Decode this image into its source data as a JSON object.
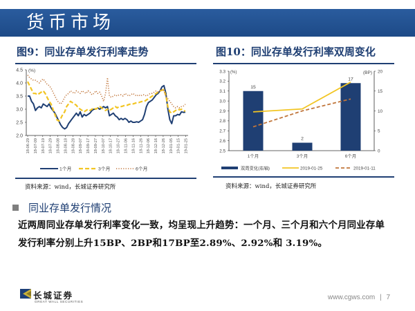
{
  "header": {
    "title": "货币市场"
  },
  "colors": {
    "brand": "#1d4a87",
    "m1": "#1f3f73",
    "m3": "#f2c523",
    "m6": "#c0753a",
    "bar": "#1f3f73",
    "line_now": "#f2c523",
    "line_prev": "#c0753a"
  },
  "chart_data": [
    {
      "type": "line",
      "title": "图9：同业存单发行利率走势",
      "ylabel": "(%)",
      "ylim": [
        2.0,
        4.5
      ],
      "yticks": [
        "4.5",
        "4.0",
        "3.5",
        "3.0",
        "2.5",
        "2.0"
      ],
      "x_tick_labels": [
        "18-06-29",
        "18-07-09",
        "18-07-19",
        "18-07-29",
        "18-08-08",
        "18-08-18",
        "18-08-28",
        "18-09-07",
        "18-09-17",
        "18-09-27",
        "18-10-07",
        "18-10-17",
        "18-10-27",
        "18-11-06",
        "18-11-16",
        "18-11-26",
        "18-12-06",
        "18-12-16",
        "18-12-26",
        "19-01-05",
        "19-01-15",
        "19-01-25"
      ],
      "legend": "bottom",
      "series": [
        {
          "name": "1个月",
          "style": "solid",
          "values": [
            3.5,
            3.5,
            3.3,
            3.2,
            2.95,
            3.05,
            3.1,
            3.05,
            3.2,
            3.15,
            3.1,
            3.2,
            3.05,
            2.95,
            2.85,
            2.7,
            2.55,
            2.4,
            2.3,
            2.25,
            2.3,
            2.45,
            2.55,
            2.65,
            2.75,
            2.85,
            2.75,
            2.9,
            2.7,
            2.8,
            2.75,
            2.8,
            2.85,
            2.95,
            3.0,
            3.0,
            3.05,
            3.0,
            3.05,
            3.1,
            3.05,
            3.1,
            2.75,
            2.8,
            2.85,
            2.75,
            2.7,
            2.6,
            2.65,
            2.6,
            2.65,
            2.6,
            2.5,
            2.55,
            2.5,
            2.5,
            2.52,
            2.5,
            2.55,
            2.6,
            2.8,
            3.1,
            3.25,
            3.3,
            3.35,
            3.45,
            3.55,
            3.6,
            3.7,
            3.85,
            3.9,
            3.6,
            3.0,
            2.6,
            2.45,
            2.75,
            2.75,
            2.8,
            2.78,
            2.9,
            2.88,
            2.89
          ]
        },
        {
          "name": "3个月",
          "style": "dashed",
          "values": [
            4.05,
            3.9,
            3.75,
            3.6,
            3.6,
            3.55,
            3.6,
            3.65,
            3.7,
            3.6,
            3.45,
            3.3,
            3.2,
            3.0,
            2.8,
            2.6,
            2.55,
            2.65,
            2.8,
            2.9,
            3.1,
            3.2,
            3.3,
            3.25,
            3.2,
            3.15,
            3.05,
            3.0,
            2.95,
            2.9,
            2.95,
            3.0,
            2.95,
            3.0,
            3.05,
            3.0,
            3.05,
            3.1,
            3.05,
            3.0,
            2.95,
            3.0,
            2.95,
            3.0,
            3.05,
            3.1,
            3.05,
            3.1,
            3.1,
            3.12,
            3.15,
            3.15,
            3.18,
            3.2,
            3.2,
            3.22,
            3.25,
            3.25,
            3.28,
            3.3,
            3.3,
            3.35,
            3.4,
            3.45,
            3.5,
            3.55,
            3.6,
            3.65,
            3.7,
            3.72,
            3.75,
            3.5,
            3.1,
            2.9,
            2.85,
            2.9,
            2.95,
            3.0,
            2.98,
            3.0,
            2.95,
            2.92
          ]
        },
        {
          "name": "6个月",
          "style": "dotted",
          "values": [
            4.3,
            4.2,
            4.15,
            4.1,
            4.1,
            4.05,
            4.0,
            4.1,
            4.15,
            4.05,
            3.95,
            3.9,
            3.8,
            3.65,
            3.5,
            3.35,
            3.25,
            3.2,
            3.3,
            3.45,
            3.55,
            3.6,
            3.7,
            3.65,
            3.6,
            3.7,
            3.65,
            3.6,
            3.7,
            3.65,
            3.6,
            3.7,
            3.65,
            3.55,
            3.6,
            3.7,
            3.6,
            3.65,
            3.5,
            3.3,
            3.6,
            4.2,
            3.5,
            3.45,
            3.5,
            3.55,
            3.5,
            3.55,
            3.55,
            3.5,
            3.6,
            3.55,
            3.5,
            3.55,
            3.6,
            3.55,
            3.5,
            3.55,
            3.5,
            3.55,
            3.55,
            3.5,
            3.55,
            3.6,
            3.6,
            3.65,
            3.7,
            3.65,
            3.7,
            3.75,
            3.7,
            3.5,
            3.4,
            3.3,
            3.2,
            3.1,
            3.05,
            3.1,
            3.05,
            3.1,
            3.12,
            3.19
          ]
        }
      ]
    },
    {
      "type": "bar+line",
      "title": "图10：同业存单发行利率双周变化",
      "categories": [
        "1个月",
        "3个月",
        "6个月"
      ],
      "ylabel_left": "(%)",
      "ylabel_right": "(BP)",
      "ylim_left": [
        2.5,
        3.3
      ],
      "ylim_right": [
        0,
        20
      ],
      "yticks_left": [
        "3.3",
        "3.2",
        "3.1",
        "3.0",
        "2.9",
        "2.8",
        "2.7",
        "2.6",
        "2.5"
      ],
      "yticks_right": [
        "20",
        "15",
        "10",
        "5",
        "0"
      ],
      "legend": "bottom",
      "bars": {
        "name": "双周变化(右轴)",
        "values": [
          15,
          2,
          17
        ],
        "labels": [
          "15",
          "2",
          "17"
        ]
      },
      "series": [
        {
          "name": "2019-01-25",
          "style": "solid",
          "values": [
            2.89,
            2.92,
            3.19
          ]
        },
        {
          "name": "2019-01-11",
          "style": "dashed",
          "values": [
            2.74,
            2.9,
            3.02
          ]
        }
      ]
    }
  ],
  "left_source": "资料来源：wind，长城证券研究所",
  "right_source": "资料来源：wind，长城证券研究所",
  "section": {
    "heading": "同业存单发行情况",
    "line1": "近两周同业存单发行利率变化一致，均呈现上升趋势：一个月、三个月和六个月同业存单",
    "line2": "发行利率分别上升15BP、2BP和17BP至2.89%、2.92%和 3.19%。"
  },
  "footer": {
    "logo_cn": "长城证券",
    "logo_en": "GREAT WALL SECURITIES",
    "site": "www.cgws.com",
    "separator": "|",
    "page": "7"
  }
}
